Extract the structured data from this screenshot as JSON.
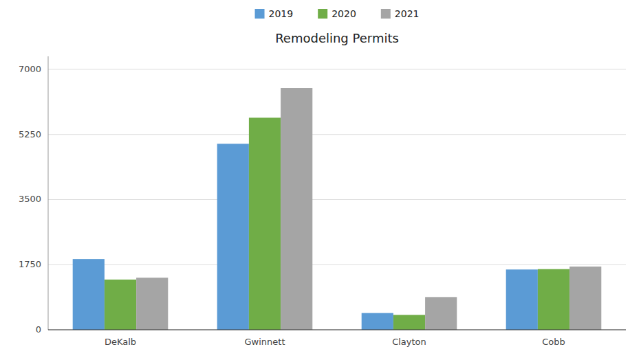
{
  "chart_data": {
    "type": "bar",
    "title": "Remodeling Permits",
    "categories": [
      "DeKalb",
      "Gwinnett",
      "Clayton",
      "Cobb"
    ],
    "series": [
      {
        "name": "2019",
        "color": "#5B9BD5",
        "values": [
          1900,
          5000,
          450,
          1620
        ]
      },
      {
        "name": "2020",
        "color": "#70AD47",
        "values": [
          1350,
          5700,
          400,
          1630
        ]
      },
      {
        "name": "2021",
        "color": "#A5A5A5",
        "values": [
          1400,
          6500,
          880,
          1700
        ]
      }
    ],
    "ylim": [
      0,
      7350
    ],
    "yticks": [
      0,
      1750,
      3500,
      5250,
      7000
    ],
    "grid": true,
    "legend": "top"
  }
}
